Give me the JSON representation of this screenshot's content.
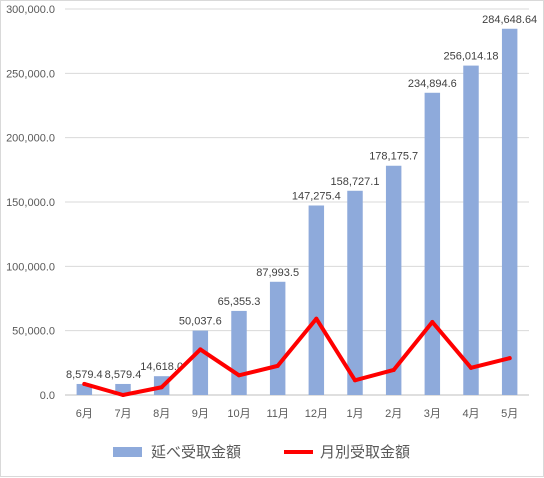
{
  "chart_data": {
    "type": "bar",
    "categories": [
      "6月",
      "7月",
      "8月",
      "9月",
      "10月",
      "11月",
      "12月",
      "1月",
      "2月",
      "3月",
      "4月",
      "5月"
    ],
    "series": [
      {
        "name": "延べ受取金額",
        "type": "bar",
        "color": "#8eaadb",
        "values": [
          8579.4,
          8579.4,
          14618.0,
          50037.6,
          65355.3,
          87993.5,
          147275.4,
          158727.1,
          178175.7,
          234894.6,
          256014.18,
          284648.64
        ],
        "labels": [
          "8,579.4",
          "8,579.4",
          "14,618.0",
          "50,037.6",
          "65,355.3",
          "87,993.5",
          "147,275.4",
          "158,727.1",
          "178,175.7",
          "234,894.6",
          "256,014.18",
          "284,648.64"
        ]
      },
      {
        "name": "月別受取金額",
        "type": "line",
        "color": "#ff0000",
        "values": [
          8579.4,
          0,
          6038.6,
          35419.6,
          15317.7,
          22638.2,
          59281.9,
          11451.7,
          19448.6,
          56718.9,
          21119.58,
          28634.46
        ]
      }
    ],
    "ylim": [
      0,
      300000
    ],
    "yticks": [
      0,
      50000,
      100000,
      150000,
      200000,
      250000,
      300000
    ],
    "ytick_labels": [
      "0.0",
      "50,000.0",
      "100,000.0",
      "150,000.0",
      "200,000.0",
      "250,000.0",
      "300,000.0"
    ],
    "grid": true,
    "legend_position": "bottom"
  }
}
